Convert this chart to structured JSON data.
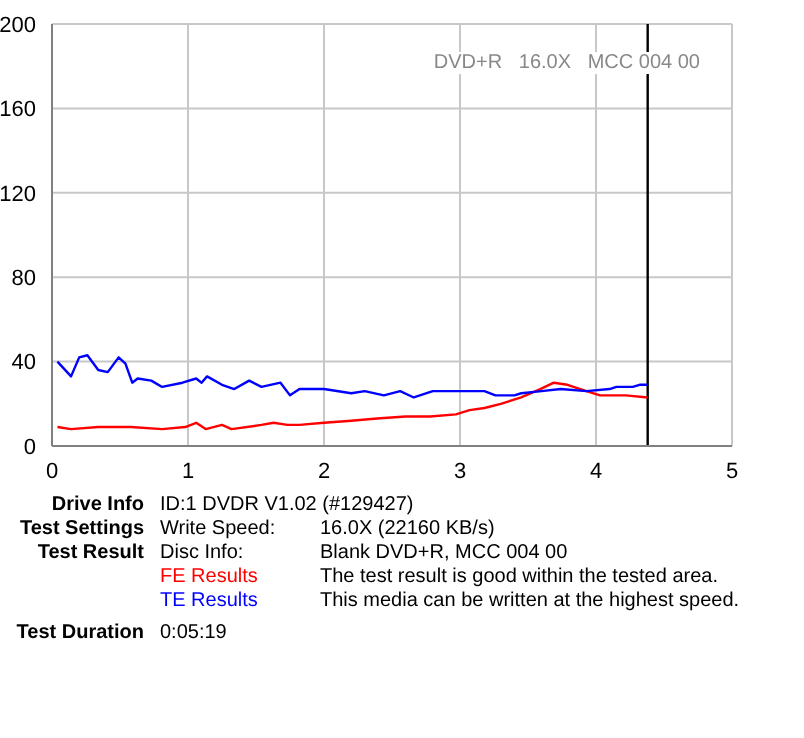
{
  "chart_data": {
    "type": "line",
    "xlim": [
      0,
      5
    ],
    "xticks": [
      0,
      1,
      2,
      3,
      4,
      5
    ],
    "ylim": [
      0,
      200
    ],
    "yticks": [
      0,
      40,
      80,
      120,
      160,
      200
    ],
    "grid": true,
    "legend": "bottom",
    "marker": "none",
    "series": [
      {
        "name": "FE Results",
        "color": "#ff0000",
        "x": [
          0.04,
          0.14,
          0.34,
          0.58,
          0.81,
          0.98,
          1.06,
          1.13,
          1.25,
          1.32,
          1.54,
          1.63,
          1.73,
          1.82,
          2.0,
          2.2,
          2.39,
          2.6,
          2.78,
          2.97,
          3.07,
          3.18,
          3.3,
          3.45,
          3.59,
          3.69,
          3.79,
          3.93,
          4.03,
          4.22,
          4.38
        ],
        "values": [
          9,
          8,
          9,
          9,
          8,
          9,
          11,
          8,
          10,
          8,
          10,
          11,
          10,
          10,
          11,
          12,
          13,
          14,
          14,
          15,
          17,
          18,
          20,
          23,
          27,
          30,
          29,
          26,
          24,
          24,
          23
        ]
      },
      {
        "name": "TE Results",
        "color": "#0000ff",
        "x": [
          0.04,
          0.14,
          0.2,
          0.26,
          0.34,
          0.41,
          0.49,
          0.54,
          0.59,
          0.63,
          0.73,
          0.81,
          0.96,
          1.06,
          1.1,
          1.14,
          1.25,
          1.34,
          1.45,
          1.54,
          1.68,
          1.75,
          1.82,
          2.0,
          2.2,
          2.3,
          2.44,
          2.56,
          2.66,
          2.8,
          2.97,
          3.18,
          3.26,
          3.4,
          3.45,
          3.6,
          3.74,
          3.93,
          4.1,
          4.15,
          4.27,
          4.32,
          4.38
        ],
        "values": [
          40,
          33,
          42,
          43,
          36,
          35,
          42,
          39,
          30,
          32,
          31,
          28,
          30,
          32,
          30,
          33,
          29,
          27,
          31,
          28,
          30,
          24,
          27,
          27,
          25,
          26,
          24,
          26,
          23,
          26,
          26,
          26,
          24,
          24,
          25,
          26,
          27,
          26,
          27,
          28,
          28,
          29,
          29
        ]
      }
    ],
    "ref_lines": [
      {
        "axis": "x",
        "value": 4.38,
        "color": "#000000"
      }
    ],
    "annotations": [
      "DVD+R   16.0X   MCC 004 00",
      "Drive Info",
      "ID:1 DVDR V1.02 (#129427)",
      "Test Settings",
      "Write Speed:",
      "16.0X (22160 KB/s)",
      "Test Result",
      "Disc Info:",
      "Blank DVD+R, MCC 004 00",
      "The test result is good within the tested area.",
      "This media can be written at the highest speed.",
      "Test Duration",
      "0:05:19"
    ]
  }
}
